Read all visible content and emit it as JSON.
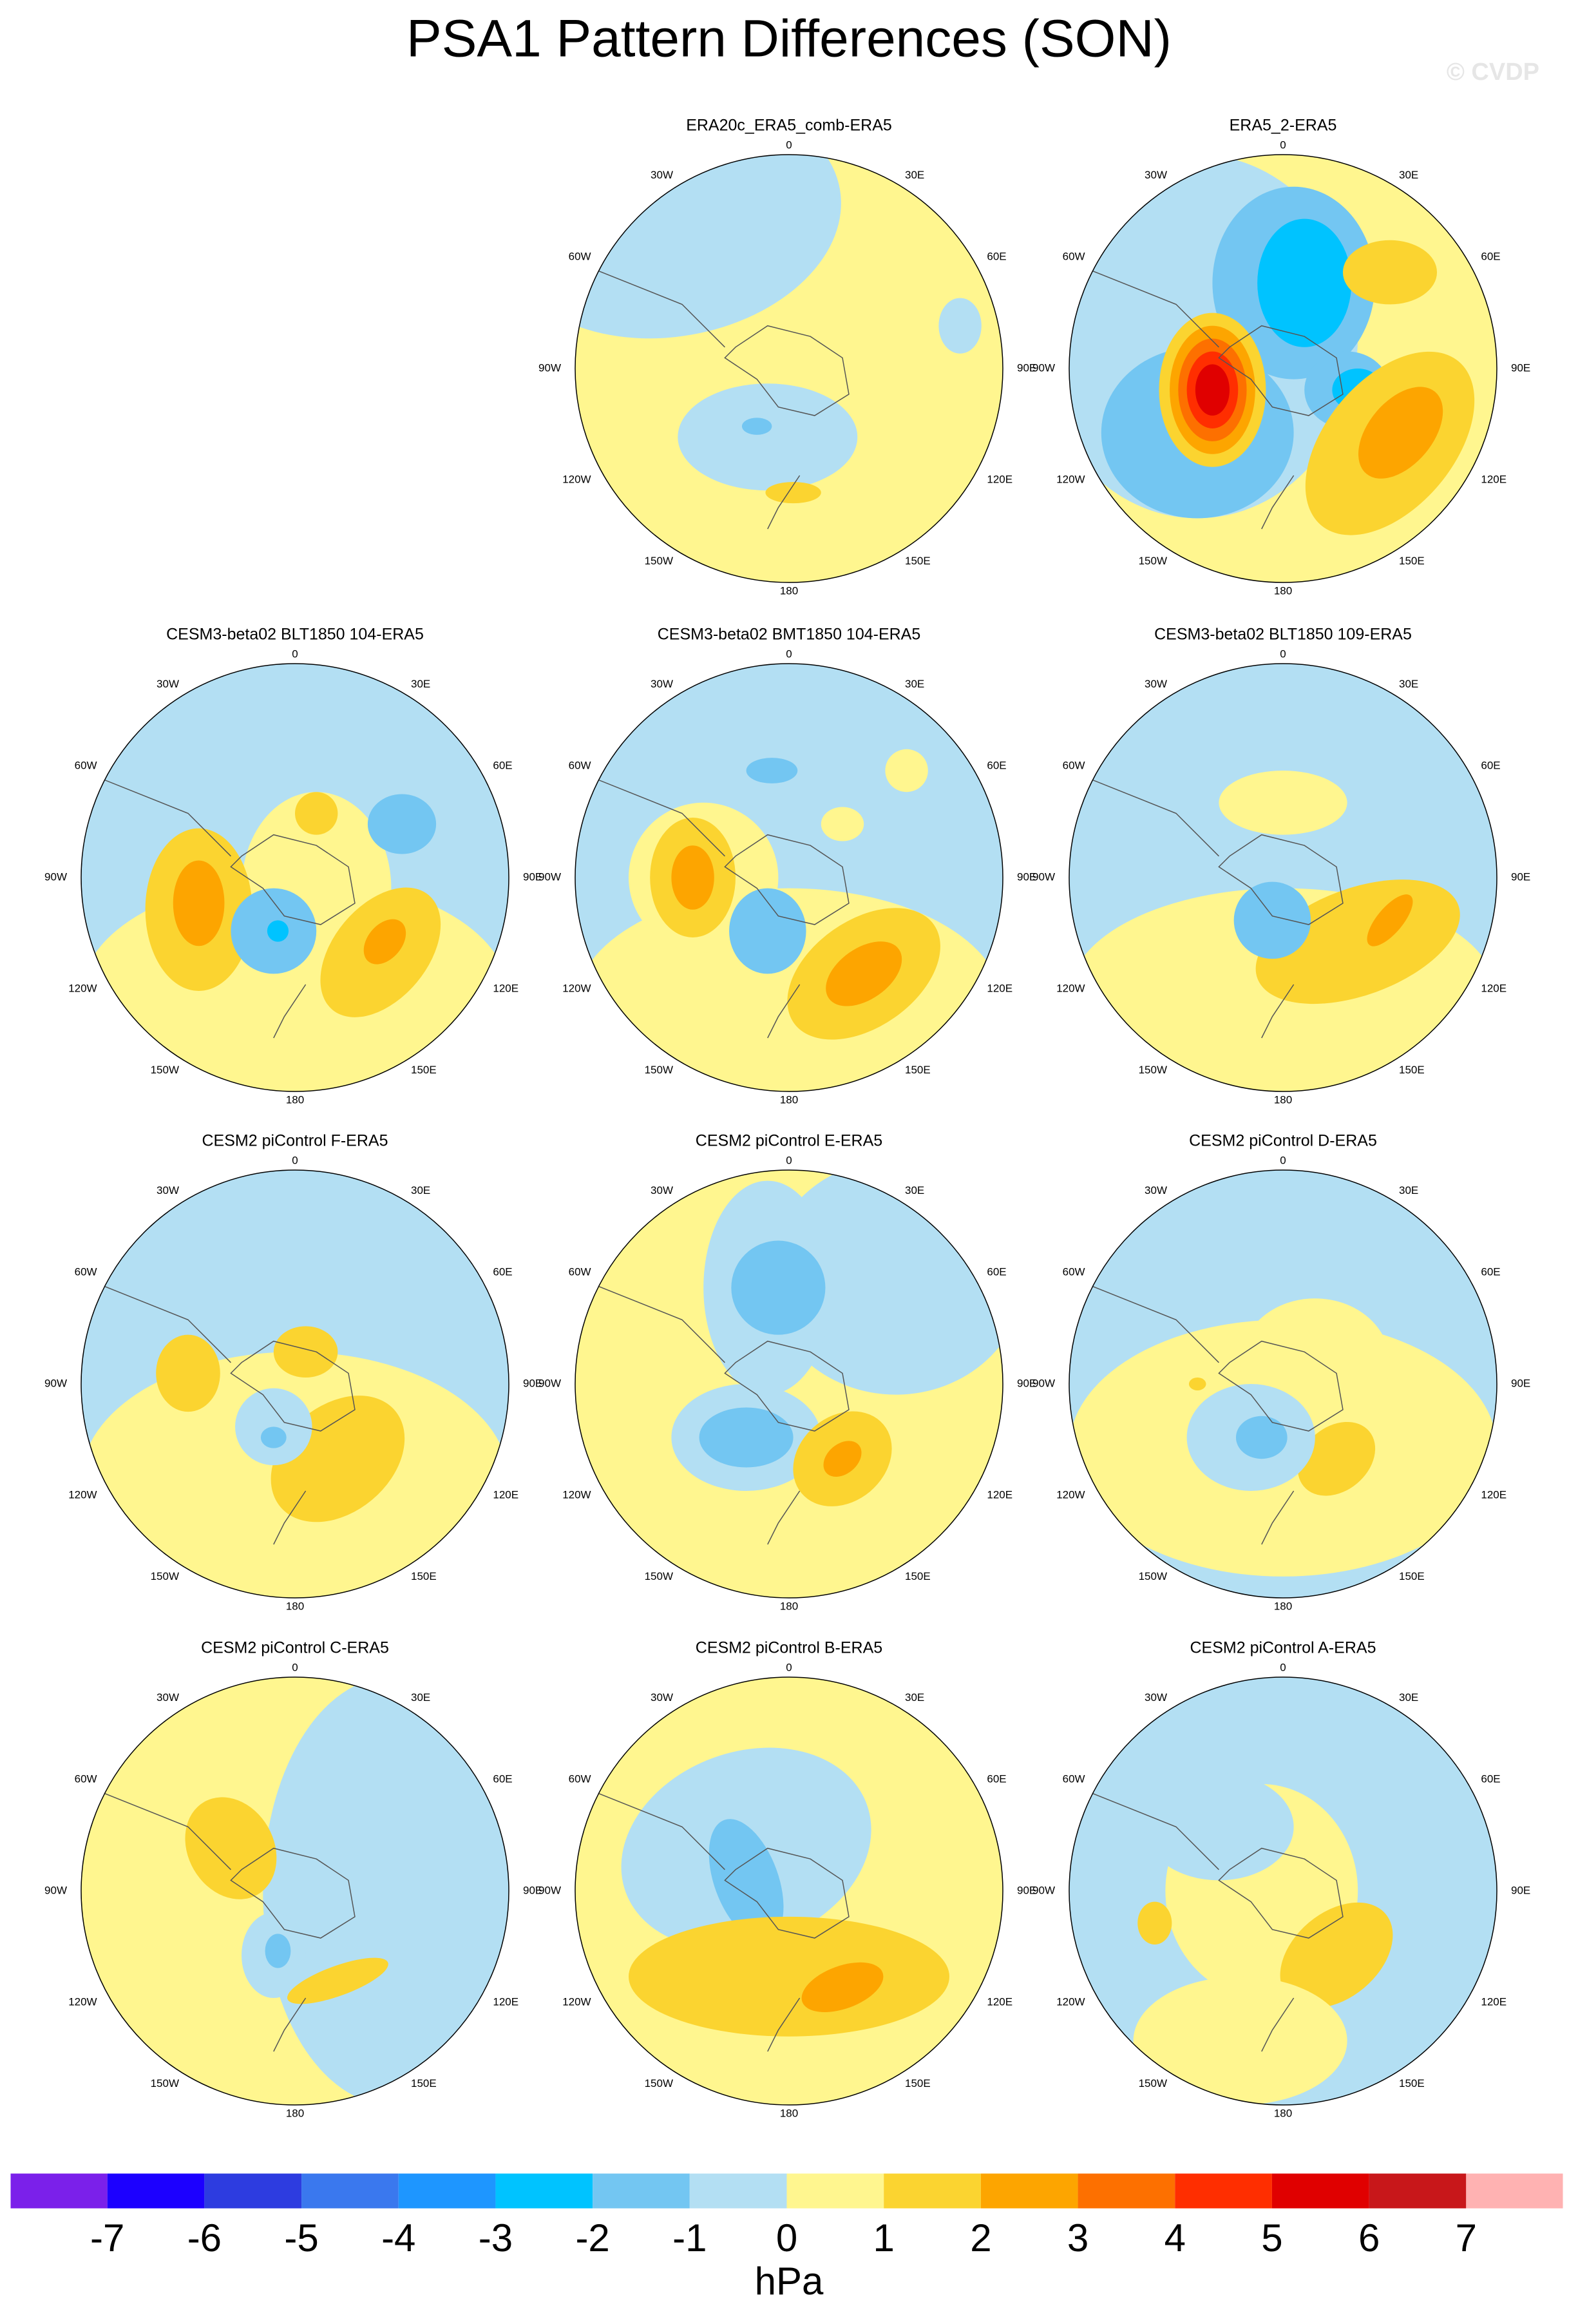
{
  "chart_data": {
    "type": "polar-contour",
    "title": "PSA1 Pattern Differences (SON)",
    "watermark": "© CVDP",
    "panels": [
      {
        "title": "ERA20c_ERA5_comb-ERA5"
      },
      {
        "title": "ERA5_2-ERA5"
      },
      {
        "title": "CESM3-beta02 BLT1850 104-ERA5"
      },
      {
        "title": "CESM3-beta02 BMT1850 104-ERA5"
      },
      {
        "title": "CESM3-beta02 BLT1850 109-ERA5"
      },
      {
        "title": "CESM2 piControl F-ERA5"
      },
      {
        "title": "CESM2 piControl E-ERA5"
      },
      {
        "title": "CESM2 piControl D-ERA5"
      },
      {
        "title": "CESM2 piControl C-ERA5"
      },
      {
        "title": "CESM2 piControl B-ERA5"
      },
      {
        "title": "CESM2 piControl A-ERA5"
      }
    ],
    "lon_labels": [
      "0",
      "30E",
      "60E",
      "90E",
      "120E",
      "150E",
      "180",
      "150W",
      "120W",
      "90W",
      "60W",
      "30W"
    ],
    "colorbar": {
      "levels": [
        -7,
        -6,
        -5,
        -4,
        -3,
        -2,
        -1,
        0,
        1,
        2,
        3,
        4,
        5,
        6,
        7
      ],
      "colors": [
        "#7b20ea",
        "#1c00ff",
        "#2d3ce0",
        "#3a78ee",
        "#1e96ff",
        "#00c3ff",
        "#73c6f2",
        "#b3dff3",
        "#fff68f",
        "#fbd430",
        "#fda500",
        "#fd7000",
        "#ff2e00",
        "#e00000",
        "#c8171a",
        "#ffb2b2"
      ],
      "unit": "hPa"
    }
  }
}
